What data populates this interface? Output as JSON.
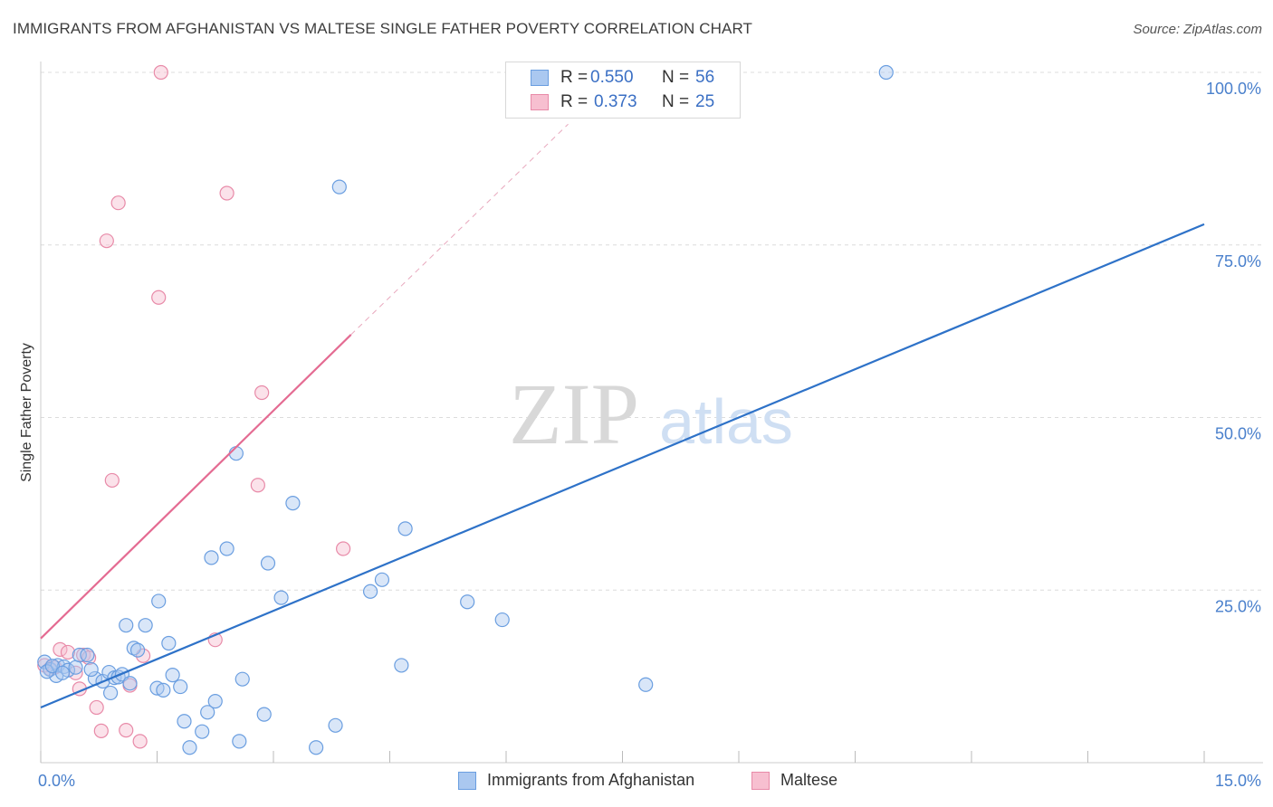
{
  "header": {
    "title": "IMMIGRANTS FROM AFGHANISTAN VS MALTESE SINGLE FATHER POVERTY CORRELATION CHART",
    "source": "Source: ZipAtlas.com"
  },
  "watermark": {
    "zip": "ZIP",
    "atlas": "atlas"
  },
  "legend": {
    "rows": [
      {
        "r_label": "R =",
        "r_value": "0.550",
        "n_label": "N =",
        "n_value": "56"
      },
      {
        "r_label": "R =",
        "r_value": "0.373",
        "n_label": "N =",
        "n_value": "25"
      }
    ]
  },
  "bottom_legend": {
    "items": [
      {
        "label": "Immigrants from Afghanistan"
      },
      {
        "label": "Maltese"
      }
    ]
  },
  "colors": {
    "blue_fill": "#aac8f0",
    "blue_stroke": "#6a9ee0",
    "blue_line": "#2e72c8",
    "pink_fill": "#f7bfd0",
    "pink_stroke": "#e88aa8",
    "pink_line": "#e46b92",
    "grid": "#dcdcdc",
    "tick_text": "#4a80cc"
  },
  "chart_data": {
    "type": "scatter",
    "title": "IMMIGRANTS FROM AFGHANISTAN VS MALTESE SINGLE FATHER POVERTY CORRELATION CHART",
    "xlabel": "",
    "ylabel": "Single Father Poverty",
    "xlim": [
      0,
      15
    ],
    "ylim": [
      0,
      100
    ],
    "x_ticks": [
      0,
      1.5,
      3,
      4.5,
      6,
      7.5,
      9,
      10.5,
      12,
      13.5,
      15
    ],
    "x_tick_labels_shown": [
      {
        "value": 0,
        "label": "0.0%"
      },
      {
        "value": 15,
        "label": "15.0%"
      }
    ],
    "y_tick_labels": [
      {
        "value": 100,
        "label": "100.0%"
      },
      {
        "value": 75,
        "label": "75.0%"
      },
      {
        "value": 50,
        "label": "50.0%"
      },
      {
        "value": 25,
        "label": "25.0%"
      }
    ],
    "series": [
      {
        "name": "Immigrants from Afghanistan",
        "R": 0.55,
        "N": 56,
        "trend": {
          "x": [
            0,
            15
          ],
          "y": [
            8,
            78
          ]
        },
        "points": [
          [
            0.05,
            14.6
          ],
          [
            0.12,
            13.5
          ],
          [
            0.2,
            12.6
          ],
          [
            0.22,
            14.1
          ],
          [
            0.3,
            13.9
          ],
          [
            0.35,
            13.4
          ],
          [
            0.45,
            13.8
          ],
          [
            0.5,
            15.6
          ],
          [
            0.6,
            15.6
          ],
          [
            0.7,
            12.2
          ],
          [
            0.8,
            11.8
          ],
          [
            0.88,
            13.1
          ],
          [
            0.9,
            10.1
          ],
          [
            0.95,
            12.3
          ],
          [
            1.0,
            12.4
          ],
          [
            1.05,
            12.8
          ],
          [
            1.1,
            19.9
          ],
          [
            1.2,
            16.6
          ],
          [
            1.25,
            16.3
          ],
          [
            1.35,
            19.9
          ],
          [
            1.5,
            10.8
          ],
          [
            1.52,
            23.4
          ],
          [
            1.58,
            10.5
          ],
          [
            1.65,
            17.3
          ],
          [
            1.7,
            12.7
          ],
          [
            1.8,
            11.0
          ],
          [
            1.85,
            6.0
          ],
          [
            1.92,
            2.2
          ],
          [
            2.08,
            4.5
          ],
          [
            2.15,
            7.3
          ],
          [
            2.2,
            29.7
          ],
          [
            2.25,
            8.9
          ],
          [
            2.4,
            31.0
          ],
          [
            2.52,
            44.8
          ],
          [
            2.56,
            3.1
          ],
          [
            2.6,
            12.1
          ],
          [
            2.88,
            7.0
          ],
          [
            2.93,
            28.9
          ],
          [
            3.1,
            23.9
          ],
          [
            3.25,
            37.6
          ],
          [
            3.55,
            2.2
          ],
          [
            3.8,
            5.4
          ],
          [
            3.85,
            83.4
          ],
          [
            4.25,
            24.8
          ],
          [
            4.4,
            26.5
          ],
          [
            4.65,
            14.1
          ],
          [
            4.7,
            33.9
          ],
          [
            5.5,
            23.3
          ],
          [
            5.95,
            20.7
          ],
          [
            7.8,
            11.3
          ],
          [
            10.9,
            100.0
          ],
          [
            0.08,
            13.2
          ],
          [
            0.15,
            14.0
          ],
          [
            0.28,
            13.0
          ],
          [
            0.65,
            13.5
          ],
          [
            1.15,
            11.5
          ]
        ]
      },
      {
        "name": "Maltese",
        "R": 0.373,
        "N": 25,
        "trend": {
          "x": [
            0,
            4.0
          ],
          "y": [
            18,
            62
          ]
        },
        "trend_extension": {
          "x": [
            4.0,
            6.8
          ],
          "y": [
            62,
            92.5
          ]
        },
        "points": [
          [
            0.05,
            14.1
          ],
          [
            0.12,
            13.6
          ],
          [
            0.25,
            16.4
          ],
          [
            0.35,
            16.0
          ],
          [
            0.45,
            13.0
          ],
          [
            0.5,
            10.7
          ],
          [
            0.55,
            15.6
          ],
          [
            0.62,
            15.2
          ],
          [
            0.72,
            8.0
          ],
          [
            0.78,
            4.6
          ],
          [
            0.85,
            75.6
          ],
          [
            0.92,
            40.9
          ],
          [
            1.0,
            81.1
          ],
          [
            1.1,
            4.7
          ],
          [
            1.15,
            11.2
          ],
          [
            1.28,
            3.1
          ],
          [
            1.32,
            15.5
          ],
          [
            1.52,
            67.4
          ],
          [
            1.55,
            100.0
          ],
          [
            2.25,
            17.8
          ],
          [
            2.4,
            82.5
          ],
          [
            2.8,
            40.2
          ],
          [
            2.85,
            53.6
          ],
          [
            3.9,
            31.0
          ],
          [
            0.18,
            13.8
          ]
        ]
      }
    ]
  }
}
